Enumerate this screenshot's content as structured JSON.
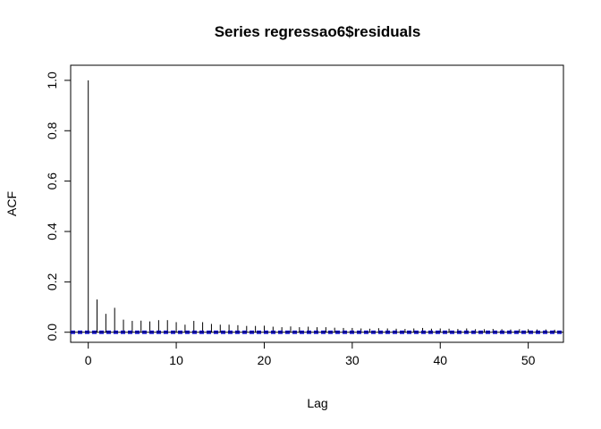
{
  "chart_data": {
    "type": "bar",
    "title": "Series  regressao6$residuals",
    "xlabel": "Lag",
    "ylabel": "ACF",
    "xlim": [
      -2,
      54
    ],
    "ylim": [
      -0.04,
      1.06
    ],
    "xticks": [
      0,
      10,
      20,
      30,
      40,
      50
    ],
    "yticks": [
      0.0,
      0.2,
      0.4,
      0.6,
      0.8,
      1.0
    ],
    "xtick_labels": [
      "0",
      "10",
      "20",
      "30",
      "40",
      "50"
    ],
    "ytick_labels": [
      "0.0",
      "0.2",
      "0.4",
      "0.6",
      "0.8",
      "1.0"
    ],
    "lags": [
      0,
      1,
      2,
      3,
      4,
      5,
      6,
      7,
      8,
      9,
      10,
      11,
      12,
      13,
      14,
      15,
      16,
      17,
      18,
      19,
      20,
      21,
      22,
      23,
      24,
      25,
      26,
      27,
      28,
      29,
      30,
      31,
      32,
      33,
      34,
      35,
      36,
      37,
      38,
      39,
      40,
      41,
      42,
      43,
      44,
      45,
      46,
      47,
      48,
      49,
      50,
      51,
      52,
      53
    ],
    "acf": [
      1.0,
      0.13,
      0.073,
      0.097,
      0.05,
      0.045,
      0.046,
      0.043,
      0.048,
      0.048,
      0.04,
      0.03,
      0.045,
      0.04,
      0.033,
      0.03,
      0.03,
      0.028,
      0.025,
      0.025,
      0.026,
      0.022,
      0.02,
      0.023,
      0.02,
      0.022,
      0.02,
      0.02,
      0.018,
      0.017,
      0.017,
      0.015,
      0.014,
      0.016,
      0.015,
      0.014,
      0.013,
      0.015,
      0.017,
      0.014,
      0.015,
      0.014,
      0.013,
      0.015,
      0.012,
      0.012,
      0.013,
      0.012,
      0.011,
      0.012,
      0.012,
      0.011,
      0.011,
      0.01
    ],
    "confidence_band": [
      -0.004,
      0.004
    ],
    "band_color": "#0000cc"
  }
}
